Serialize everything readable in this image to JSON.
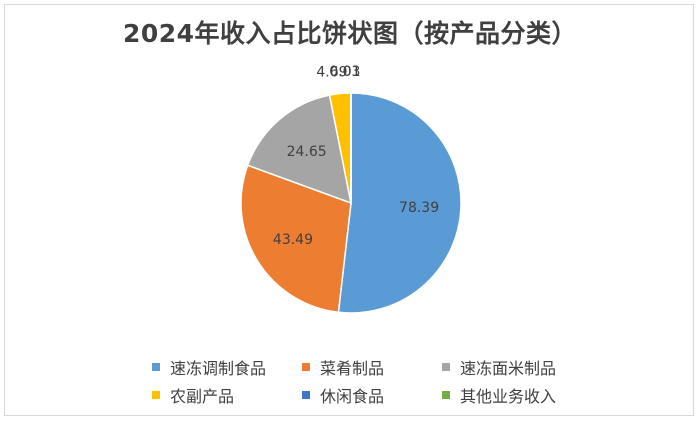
{
  "chart_data": {
    "type": "pie",
    "title": "2024年收入占比饼状图（按产品分类）",
    "categories": [
      "速冻调制食品",
      "菜肴制品",
      "速冻面米制品",
      "农副产品",
      "休闲食品",
      "其他业务收入"
    ],
    "values": [
      78.39,
      43.49,
      24.65,
      4.69,
      0.03,
      0.01
    ],
    "data_labels": [
      "78.39",
      "43.49",
      "24.65",
      "4.69",
      "0.03",
      "0.01"
    ],
    "colors": [
      "#5b9bd5",
      "#ed7d31",
      "#a5a5a5",
      "#ffc000",
      "#4472c4",
      "#70ad47"
    ],
    "legend_position": "bottom",
    "start_angle_deg": 0,
    "direction": "clockwise"
  }
}
